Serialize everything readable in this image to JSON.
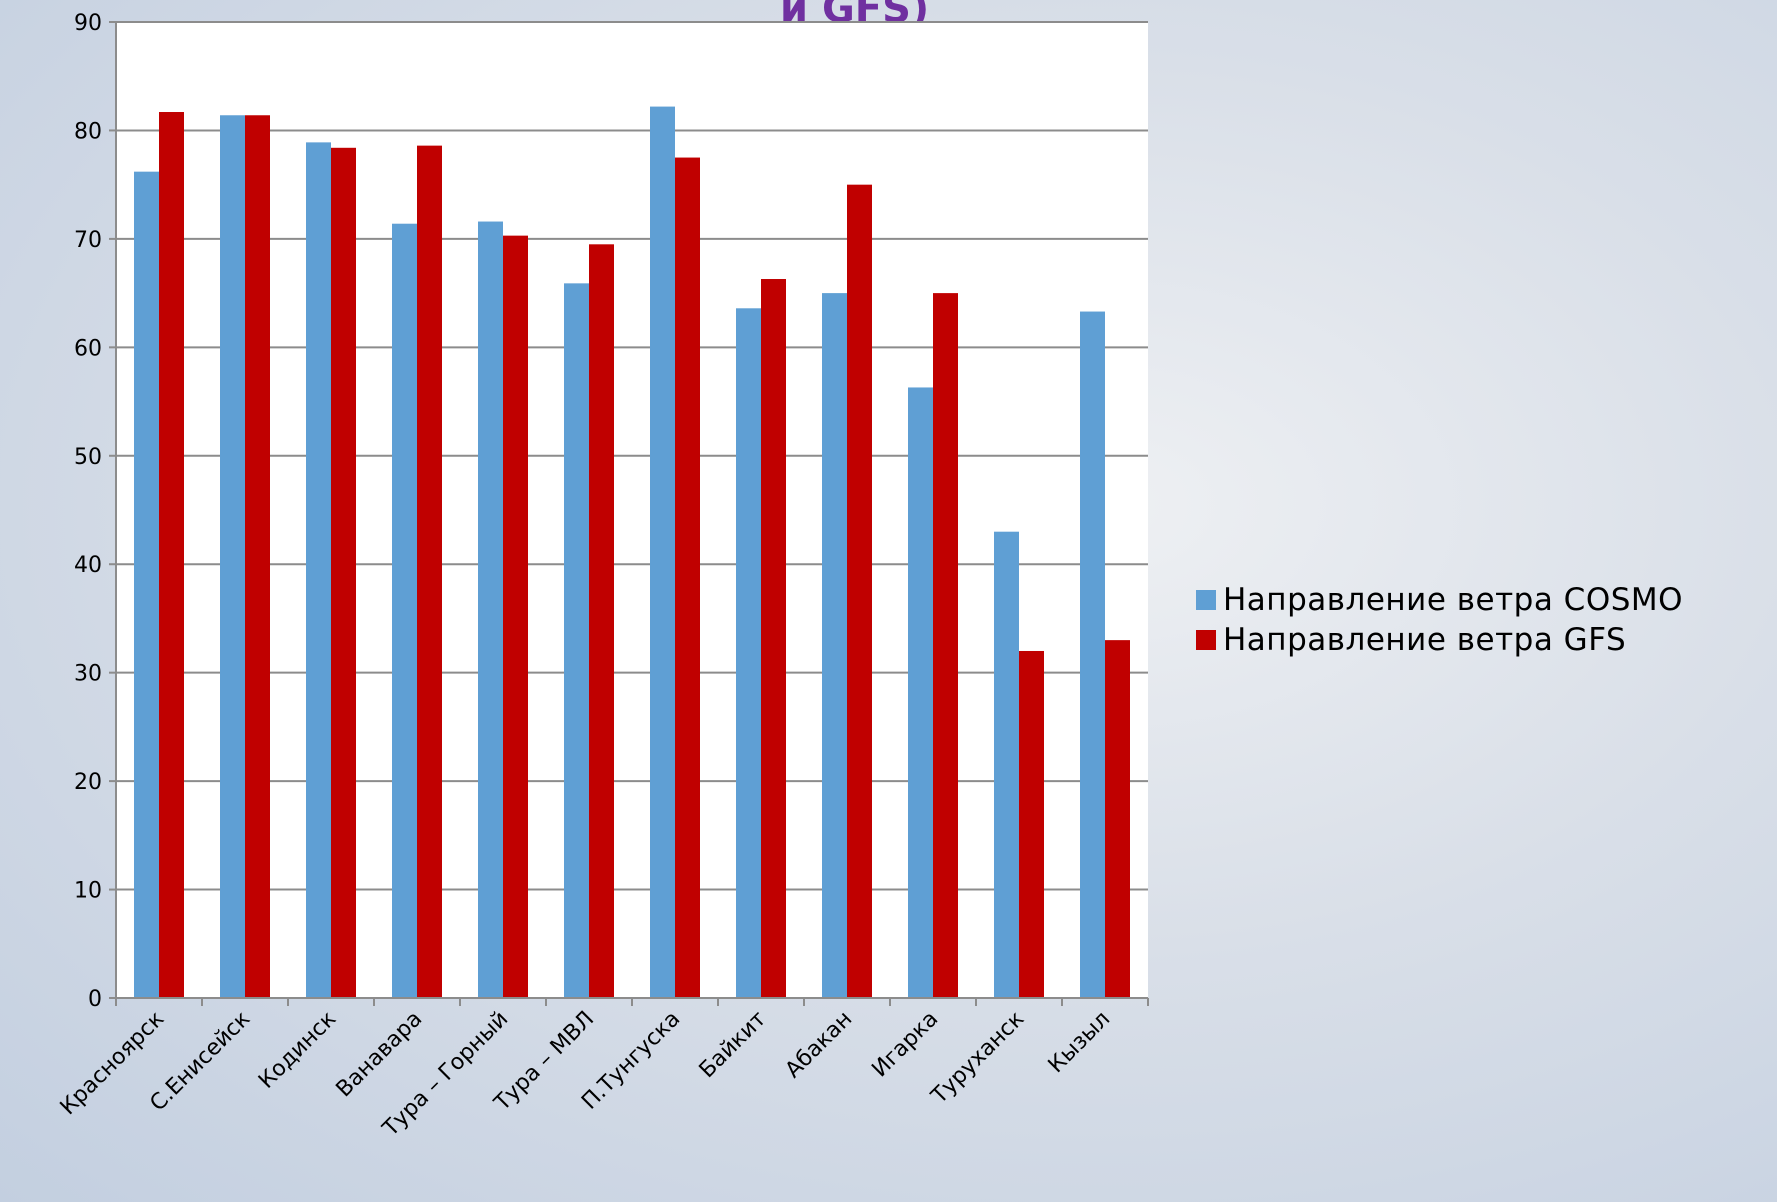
{
  "title_fragment": "и GFS)",
  "chart_data": {
    "type": "bar",
    "categories": [
      "Красноярск",
      "С.Енисейск",
      "Кодинск",
      "Ванавара",
      "Тура – Горный",
      "Тура – МВЛ",
      "П.Тунгуска",
      "Байкит",
      "Абакан",
      "Игарка",
      "Туруханск",
      "Кызыл"
    ],
    "series": [
      {
        "name": "Направление ветра COSMO",
        "color": "#5f9fd4",
        "values": [
          76.2,
          81.4,
          78.9,
          71.4,
          71.6,
          65.9,
          82.2,
          63.6,
          65.0,
          56.3,
          43.0,
          63.3
        ]
      },
      {
        "name": "Направление ветра GFS",
        "color": "#c00000",
        "values": [
          81.7,
          81.4,
          78.4,
          78.6,
          70.3,
          69.5,
          77.5,
          66.3,
          75.0,
          65.0,
          32.0,
          33.0
        ]
      }
    ],
    "ylim": [
      0,
      90
    ],
    "yticks": [
      0,
      10,
      20,
      30,
      40,
      50,
      60,
      70,
      80,
      90
    ],
    "grid": true,
    "legend_position": "right"
  }
}
